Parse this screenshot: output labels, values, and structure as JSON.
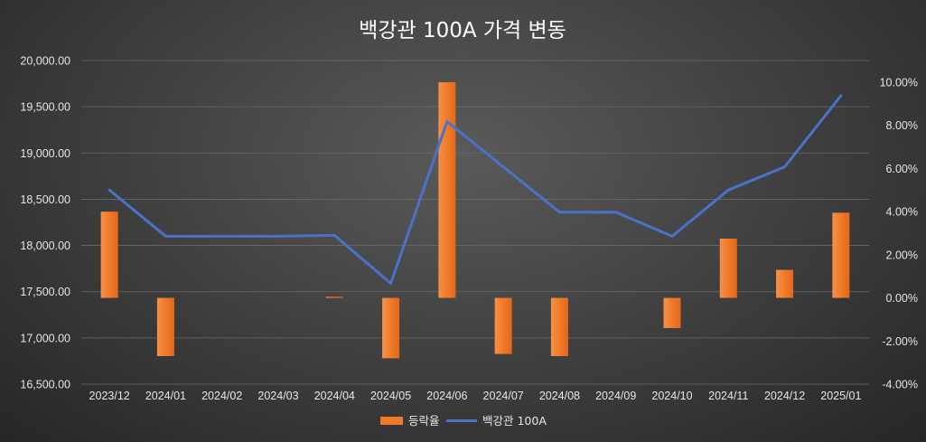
{
  "chart_data": {
    "type": "bar+line",
    "title": "백강관 100A 가격 변동",
    "categories": [
      "2023/12",
      "2024/01",
      "2024/02",
      "2024/03",
      "2024/04",
      "2024/05",
      "2024/06",
      "2024/07",
      "2024/08",
      "2024/09",
      "2024/10",
      "2024/11",
      "2024/12",
      "2025/01"
    ],
    "series": [
      {
        "name": "등락율",
        "type": "bar",
        "axis": "right",
        "color": "#f07a2a",
        "values": [
          4.0,
          -2.7,
          0.0,
          0.0,
          0.05,
          -2.8,
          10.0,
          -2.6,
          -2.7,
          0.0,
          -1.4,
          2.75,
          1.3,
          3.95
        ]
      },
      {
        "name": "백강관 100A",
        "type": "line",
        "axis": "left",
        "color": "#4a72c8",
        "values": [
          18600,
          18100,
          18100,
          18100,
          18110,
          17590,
          19340,
          18850,
          18360,
          18360,
          18100,
          18600,
          18850,
          19620
        ]
      }
    ],
    "y_left": {
      "min": 16500,
      "max": 20000,
      "step": 500,
      "ticks": [
        "16,500.00",
        "17,000.00",
        "17,500.00",
        "18,000.00",
        "18,500.00",
        "19,000.00",
        "19,500.00",
        "20,000.00"
      ]
    },
    "y_right": {
      "min": -4,
      "max": 10,
      "step": 2,
      "ticks": [
        "-4.00%",
        "-2.00%",
        "0.00%",
        "2.00%",
        "4.00%",
        "6.00%",
        "8.00%",
        "10.00%"
      ]
    },
    "grid": true,
    "legend_position": "bottom"
  }
}
